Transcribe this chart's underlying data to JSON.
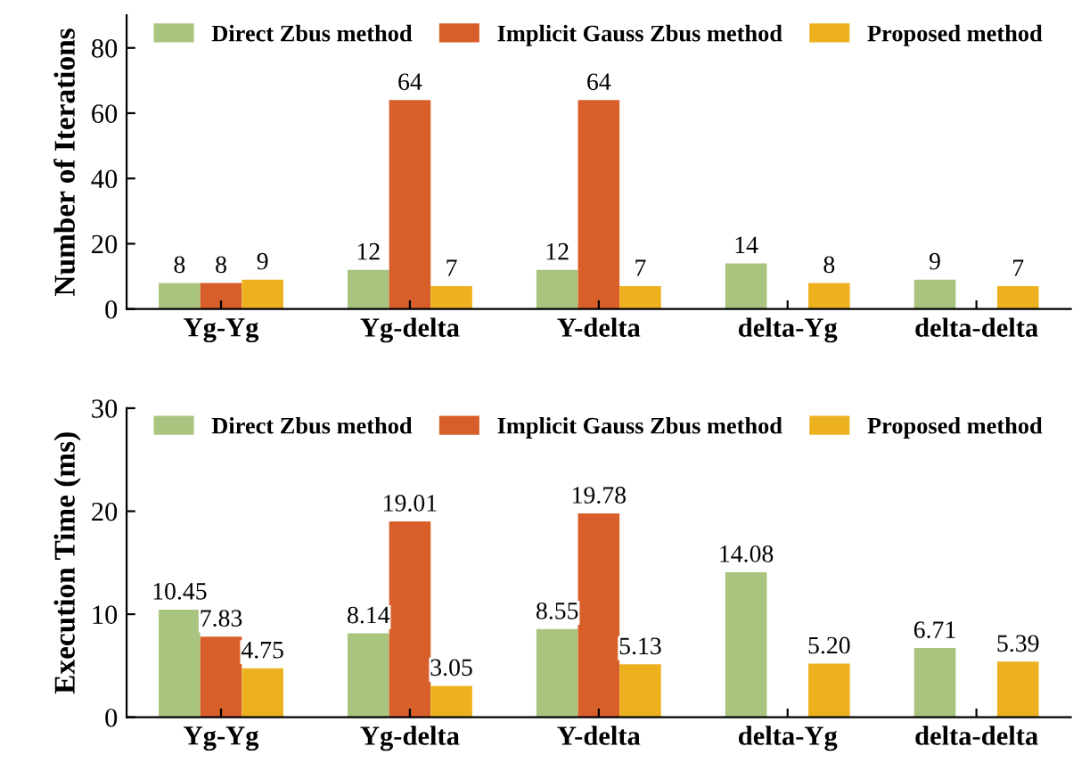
{
  "chart_data": [
    {
      "type": "bar",
      "ylabel": "Number of Iterations",
      "categories": [
        "Yg-Yg",
        "Yg-delta",
        "Y-delta",
        "delta-Yg",
        "delta-delta"
      ],
      "ylim": [
        0,
        90
      ],
      "yticks": [
        0,
        20,
        40,
        60,
        80
      ],
      "legend": "top",
      "grid": false,
      "data_labels": true,
      "series": [
        {
          "name": "Direct Zbus method",
          "color": "#a9c47f",
          "values": [
            8,
            12,
            12,
            14,
            9
          ]
        },
        {
          "name": "Implicit Gauss Zbus method",
          "color": "#d95f2a",
          "values": [
            8,
            64,
            64,
            null,
            null
          ]
        },
        {
          "name": "Proposed method",
          "color": "#edb120",
          "values": [
            9,
            7,
            7,
            8,
            7
          ]
        }
      ]
    },
    {
      "type": "bar",
      "ylabel": "Execution Time (ms)",
      "categories": [
        "Yg-Yg",
        "Yg-delta",
        "Y-delta",
        "delta-Yg",
        "delta-delta"
      ],
      "ylim": [
        0,
        30
      ],
      "yticks": [
        0,
        10,
        20,
        30
      ],
      "legend": "top",
      "grid": false,
      "series": [
        {
          "name": "Direct Zbus method",
          "color": "#a9c47f",
          "values": [
            10.45,
            8.14,
            8.55,
            14.08,
            6.71
          ],
          "value_labels": [
            "10.45",
            "8.14",
            "8.55",
            "14.08",
            "6.71"
          ]
        },
        {
          "name": "Implicit Gauss Zbus method",
          "color": "#d95f2a",
          "values": [
            7.83,
            19.01,
            19.78,
            null,
            null
          ],
          "value_labels": [
            "7.83",
            "19.01",
            "19.78",
            null,
            null
          ]
        },
        {
          "name": "Proposed method",
          "color": "#edb120",
          "values": [
            4.75,
            3.05,
            5.13,
            5.2,
            5.39
          ],
          "value_labels": [
            "4.75",
            "3.05",
            "5.13",
            "5.20",
            "5.39"
          ]
        }
      ]
    }
  ]
}
